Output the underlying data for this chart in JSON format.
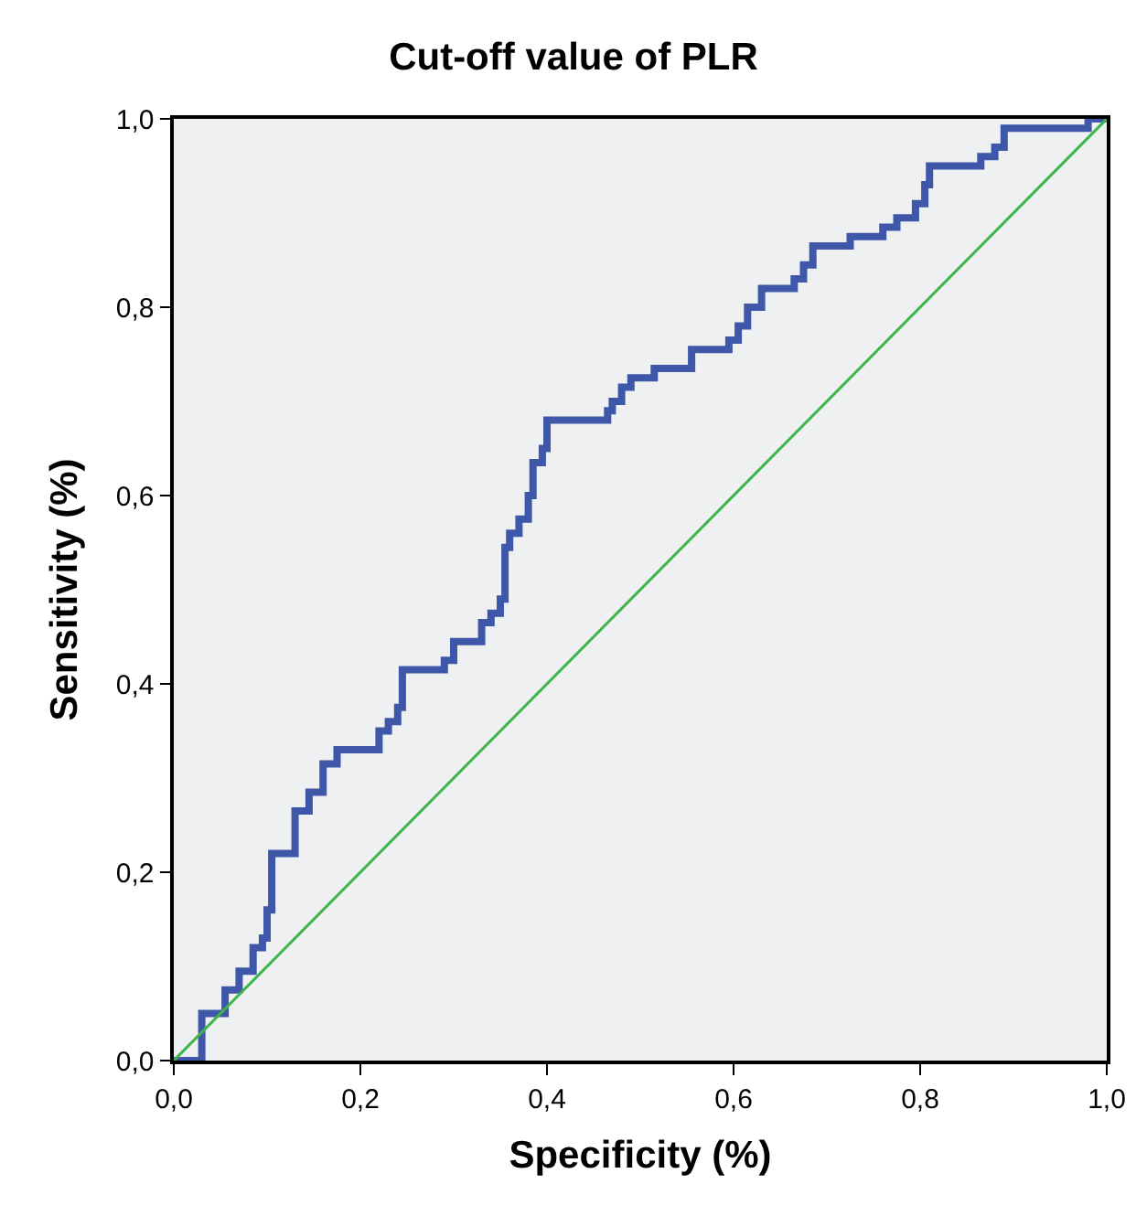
{
  "chart_data": {
    "type": "step",
    "title": "Cut-off value of PLR",
    "xlabel": "Specificity (%)",
    "ylabel": "Sensitivity (%)",
    "xlim": [
      0,
      1
    ],
    "ylim": [
      0,
      1
    ],
    "xticks": [
      {
        "value": 0,
        "label": "0,0"
      },
      {
        "value": 0.2,
        "label": "0,2"
      },
      {
        "value": 0.4,
        "label": "0,4"
      },
      {
        "value": 0.6,
        "label": "0,6"
      },
      {
        "value": 0.8,
        "label": "0,8"
      },
      {
        "value": 1,
        "label": "1,0"
      }
    ],
    "yticks": [
      {
        "value": 0,
        "label": "0,0"
      },
      {
        "value": 0.2,
        "label": "0,2"
      },
      {
        "value": 0.4,
        "label": "0,4"
      },
      {
        "value": 0.6,
        "label": "0,6"
      },
      {
        "value": 0.8,
        "label": "0,8"
      },
      {
        "value": 1,
        "label": "1,0"
      }
    ],
    "grid": false,
    "marker": "none",
    "series": [
      {
        "color": "#3f57a8",
        "x": [
          0,
          0.03,
          0.055,
          0.07,
          0.085,
          0.095,
          0.1,
          0.105,
          0.13,
          0.145,
          0.16,
          0.175,
          0.22,
          0.23,
          0.24,
          0.245,
          0.29,
          0.3,
          0.33,
          0.34,
          0.35,
          0.355,
          0.36,
          0.37,
          0.38,
          0.385,
          0.395,
          0.4,
          0.465,
          0.47,
          0.48,
          0.49,
          0.515,
          0.555,
          0.595,
          0.605,
          0.615,
          0.63,
          0.665,
          0.675,
          0.685,
          0.725,
          0.76,
          0.775,
          0.795,
          0.805,
          0.81,
          0.865,
          0.88,
          0.89,
          0.98,
          1.0
        ],
        "values": [
          0,
          0.05,
          0.075,
          0.095,
          0.12,
          0.13,
          0.16,
          0.22,
          0.265,
          0.285,
          0.315,
          0.33,
          0.35,
          0.36,
          0.375,
          0.415,
          0.425,
          0.445,
          0.465,
          0.475,
          0.49,
          0.545,
          0.56,
          0.575,
          0.6,
          0.635,
          0.65,
          0.68,
          0.69,
          0.7,
          0.715,
          0.725,
          0.735,
          0.755,
          0.765,
          0.78,
          0.8,
          0.82,
          0.83,
          0.845,
          0.865,
          0.875,
          0.885,
          0.895,
          0.91,
          0.93,
          0.95,
          0.96,
          0.97,
          0.99,
          1.0,
          1.0
        ]
      },
      {
        "type": "line",
        "color": "#3cb54a",
        "x": [
          0,
          1
        ],
        "values": [
          0,
          1
        ]
      }
    ]
  }
}
